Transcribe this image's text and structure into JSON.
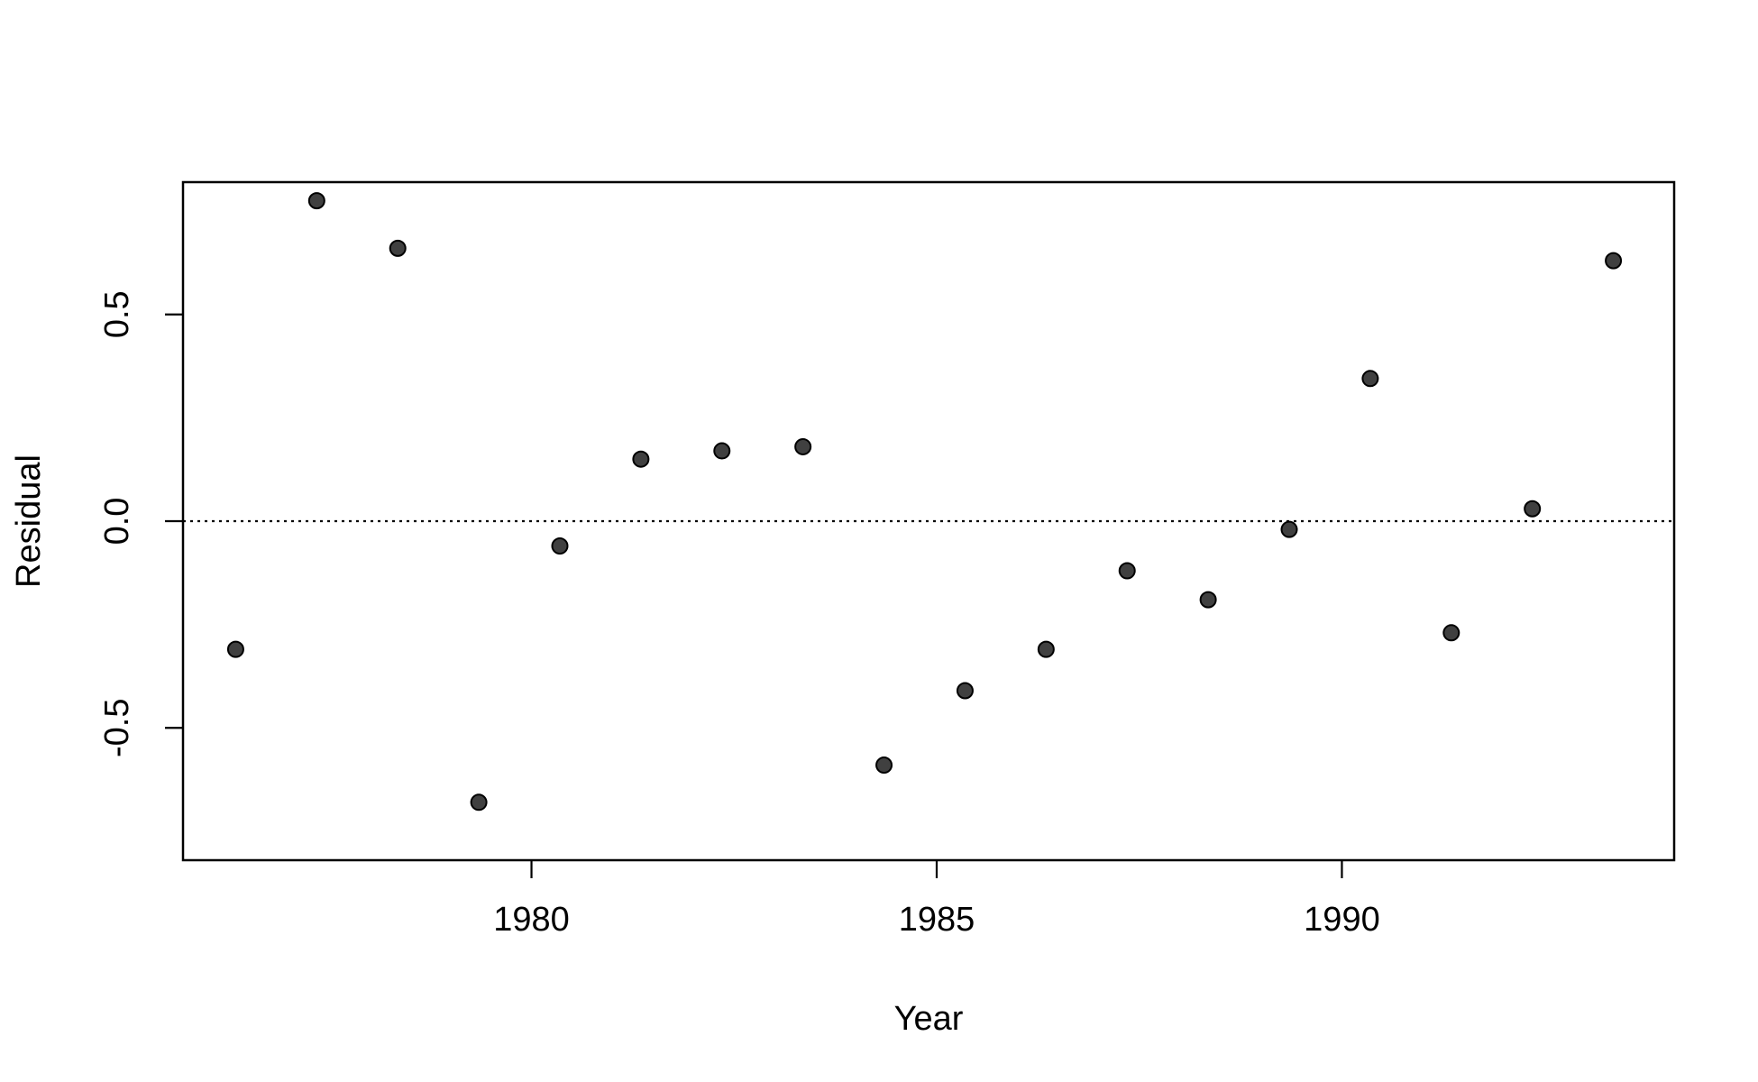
{
  "chart_data": {
    "type": "scatter",
    "xlabel": "Year",
    "ylabel": "Residual",
    "xlim": [
      1975.7,
      1994.1
    ],
    "ylim": [
      -0.82,
      0.82
    ],
    "x_ticks": [
      {
        "value": 1980,
        "label": "1980"
      },
      {
        "value": 1985,
        "label": "1985"
      },
      {
        "value": 1990,
        "label": "1990"
      }
    ],
    "y_ticks": [
      {
        "value": -0.5,
        "label": "-0.5"
      },
      {
        "value": 0.0,
        "label": "0.0"
      },
      {
        "value": 0.5,
        "label": "0.5"
      }
    ],
    "reference_line": {
      "y": 0,
      "style": "dotted"
    },
    "grid": false,
    "point_color": "#404040",
    "series": [
      {
        "points": [
          {
            "x": 1976.35,
            "y": -0.31
          },
          {
            "x": 1977.35,
            "y": 0.775
          },
          {
            "x": 1978.35,
            "y": 0.66
          },
          {
            "x": 1979.35,
            "y": -0.68
          },
          {
            "x": 1980.35,
            "y": -0.06
          },
          {
            "x": 1981.35,
            "y": 0.15
          },
          {
            "x": 1982.35,
            "y": 0.17
          },
          {
            "x": 1983.35,
            "y": 0.18
          },
          {
            "x": 1984.35,
            "y": -0.59
          },
          {
            "x": 1985.35,
            "y": -0.41
          },
          {
            "x": 1986.35,
            "y": -0.31
          },
          {
            "x": 1987.35,
            "y": -0.12
          },
          {
            "x": 1988.35,
            "y": -0.19
          },
          {
            "x": 1989.35,
            "y": -0.02
          },
          {
            "x": 1990.35,
            "y": 0.345
          },
          {
            "x": 1991.35,
            "y": -0.27
          },
          {
            "x": 1992.35,
            "y": 0.03
          },
          {
            "x": 1993.35,
            "y": 0.63
          }
        ]
      }
    ]
  }
}
